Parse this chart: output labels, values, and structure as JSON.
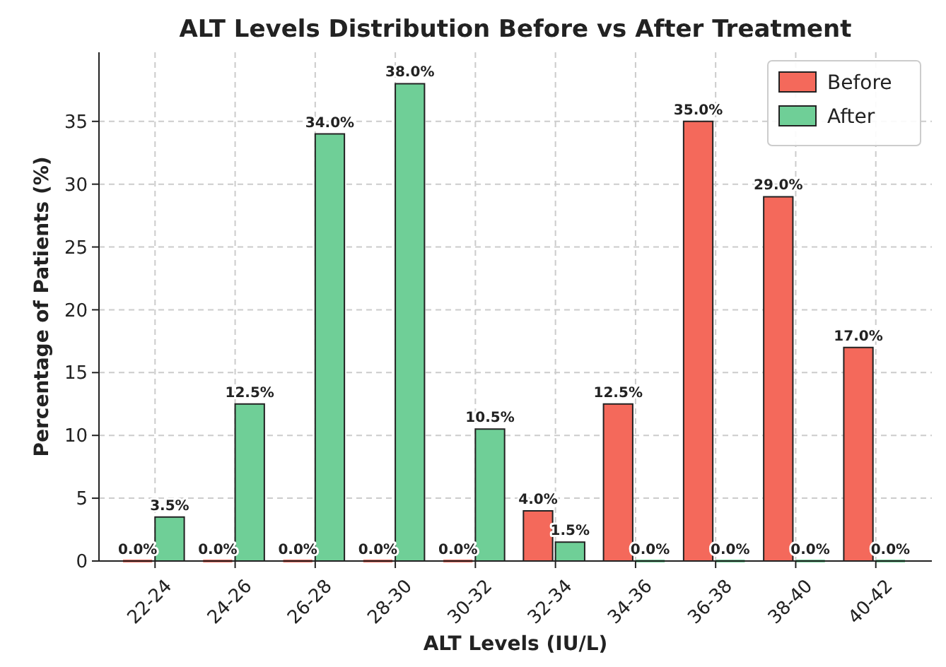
{
  "chart_data": {
    "type": "bar",
    "title": "ALT Levels Distribution Before vs After Treatment",
    "xlabel": "ALT Levels (IU/L)",
    "ylabel": "Percentage of Patients (%)",
    "categories": [
      "22-24",
      "24-26",
      "26-28",
      "28-30",
      "30-32",
      "32-34",
      "34-36",
      "36-38",
      "38-40",
      "40-42"
    ],
    "series": [
      {
        "name": "Before",
        "color": "#f4695b",
        "values": [
          0,
          0,
          0,
          0,
          0,
          4,
          12.5,
          35,
          29,
          17
        ],
        "value_labels": [
          "0.0%",
          "0.0%",
          "0.0%",
          "0.0%",
          "0.0%",
          "4.0%",
          "12.5%",
          "35.0%",
          "29.0%",
          "17.0%"
        ]
      },
      {
        "name": "After",
        "color": "#6fcf97",
        "values": [
          3.5,
          12.5,
          34,
          38,
          10.5,
          1.5,
          0,
          0,
          0,
          0
        ],
        "value_labels": [
          "3.5%",
          "12.5%",
          "34.0%",
          "38.0%",
          "10.5%",
          "1.5%",
          "0.0%",
          "0.0%",
          "0.0%",
          "0.0%"
        ]
      }
    ],
    "ylim": [
      0,
      40.5
    ],
    "yticks": [
      0,
      5,
      10,
      15,
      20,
      25,
      30,
      35
    ],
    "grid": true,
    "legend": "top right"
  }
}
